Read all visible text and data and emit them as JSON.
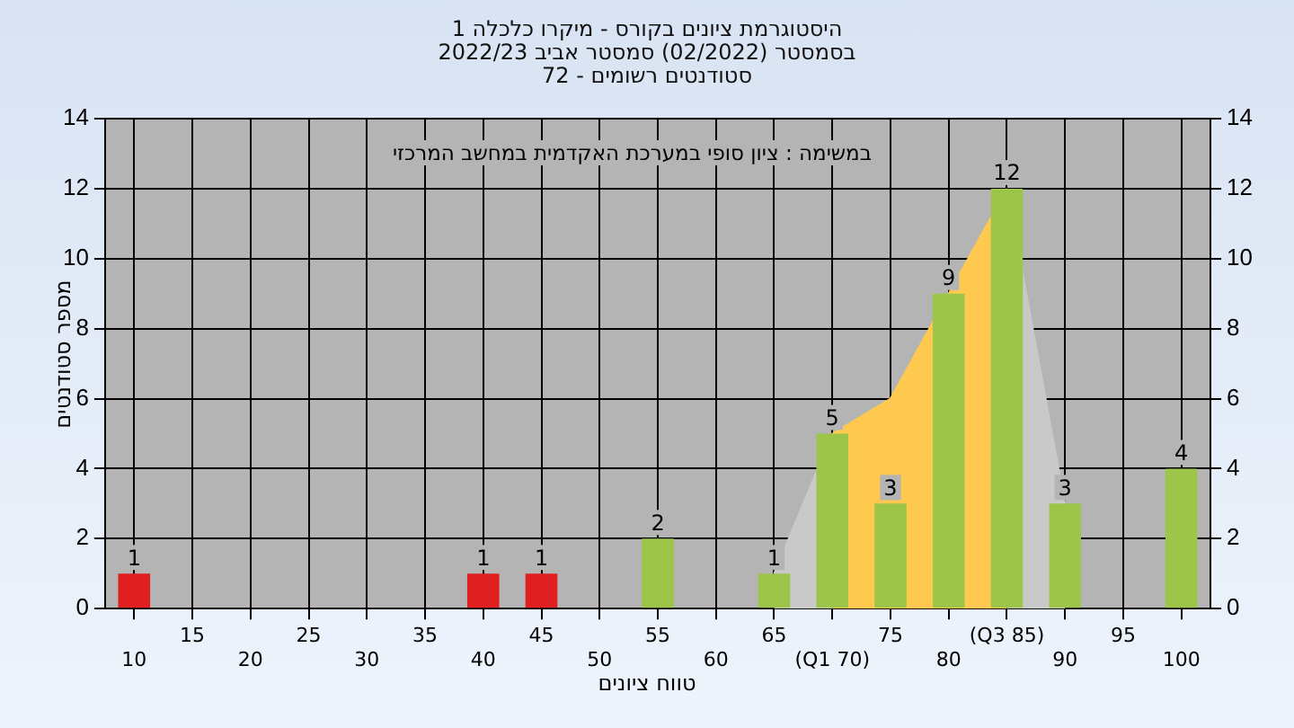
{
  "chart_data": {
    "type": "bar",
    "title": "היסטוגרמת ציונים בקורס - מיקרו כלכלה 1\nבסמסטר  (02/2022)  סמסטר אביב 2022/23\nסטודנטים רשומים - 72",
    "xlabel": "טווח ציונים",
    "ylabel": "מספר סטודנטים",
    "annotations": [
      "במשימה : ציון סופי במערכת האקדמית במחשב המרכזי"
    ],
    "categories": [
      "10",
      "15",
      "20",
      "25",
      "30",
      "35",
      "40",
      "45",
      "50",
      "55",
      "60",
      "65",
      "(Q1 70)",
      "75",
      "80",
      "(Q3 85)",
      "90",
      "95",
      "100"
    ],
    "series": [
      {
        "values": [
          1,
          null,
          null,
          null,
          null,
          null,
          1,
          1,
          null,
          2,
          null,
          1,
          5,
          3,
          9,
          12,
          3,
          null,
          4
        ],
        "value_labels": [
          "1",
          null,
          null,
          null,
          null,
          null,
          "1",
          "1",
          null,
          "2",
          null,
          "1",
          "5",
          "3",
          "9",
          "12",
          "3",
          null,
          "4"
        ],
        "colors": [
          "#e02020",
          null,
          null,
          null,
          null,
          null,
          "#e02020",
          "#e02020",
          null,
          "#9cc54a",
          null,
          "#9cc54a",
          "#9cc54a",
          "#9cc54a",
          "#9cc54a",
          "#9cc54a",
          "#9cc54a",
          null,
          "#9cc54a"
        ]
      },
      {
        "type": "area",
        "color": "#c9c9c9",
        "values": [
          null,
          null,
          null,
          null,
          null,
          null,
          null,
          null,
          null,
          null,
          null,
          1,
          5,
          null,
          null,
          null,
          null,
          null,
          null
        ]
      },
      {
        "type": "area",
        "color": "#ffc94f",
        "values": [
          null,
          null,
          null,
          null,
          null,
          null,
          null,
          null,
          null,
          null,
          null,
          null,
          5,
          6,
          9,
          12,
          null,
          null,
          null
        ]
      },
      {
        "type": "area",
        "color": "#c9c9c9",
        "values": [
          null,
          null,
          null,
          null,
          null,
          null,
          null,
          null,
          null,
          null,
          null,
          null,
          null,
          null,
          null,
          12,
          3,
          null,
          null
        ]
      }
    ],
    "ylim": [
      0,
      14
    ],
    "yticks": [
      0,
      2,
      4,
      6,
      8,
      10,
      12,
      14
    ],
    "y2lim": [
      0,
      14
    ],
    "y2ticks": [
      0,
      2,
      4,
      6,
      8,
      10,
      12,
      14
    ],
    "grid": true
  }
}
